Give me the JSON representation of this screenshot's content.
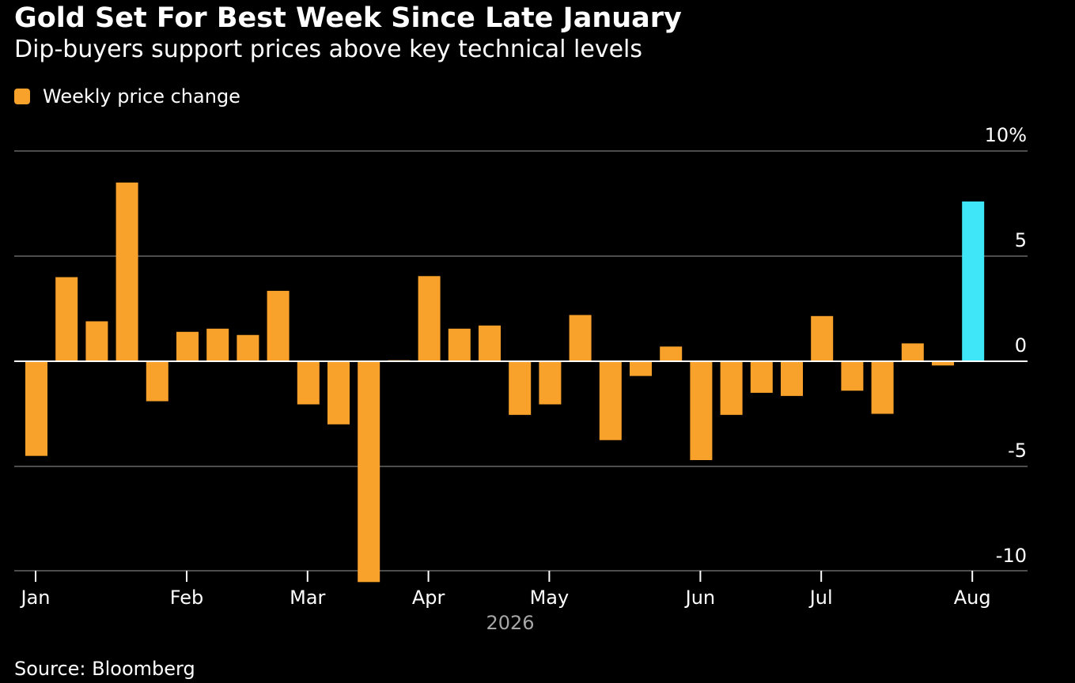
{
  "header": {
    "title": "Gold Set For Best Week Since Late January",
    "subtitle": "Dip-buyers support prices above key technical levels"
  },
  "legend": {
    "label": "Weekly price change"
  },
  "footer": {
    "source": "Source: Bloomberg"
  },
  "colors": {
    "background": "#000000",
    "bar": "#f9a22b",
    "highlight": "#3fe6f8",
    "gridline": "#4d4d4d",
    "text": "#ffffff",
    "year_label": "#a6a6a6"
  },
  "chart_data": {
    "type": "bar",
    "title": "Gold Set For Best Week Since Late January",
    "subtitle": "Dip-buyers support prices above key technical levels",
    "ylim": [
      -10.5,
      10
    ],
    "ytick_labels": [
      "10%",
      "5",
      "0",
      "-5",
      "-10"
    ],
    "ytick_values": [
      10,
      5,
      0,
      -5,
      -10
    ],
    "y_axis_position": "right",
    "grid": true,
    "legend_position": "top-left",
    "year_label": "2026",
    "month_labels": [
      "Jan",
      "Feb",
      "Mar",
      "Apr",
      "May",
      "Jun",
      "Jul",
      "Aug"
    ],
    "month_positions": [
      0.34,
      5.34,
      9.34,
      13.34,
      17.34,
      22.34,
      26.34,
      31.34
    ],
    "series": [
      {
        "name": "Weekly price change",
        "values": [
          -4.5,
          4.0,
          1.9,
          8.5,
          -1.9,
          1.4,
          1.55,
          1.25,
          3.35,
          -2.05,
          -3.0,
          -10.5,
          0.05,
          4.05,
          1.55,
          1.7,
          -2.55,
          -2.05,
          2.2,
          -3.75,
          -0.7,
          0.7,
          -4.7,
          -2.55,
          -1.5,
          -1.65,
          2.15,
          -1.4,
          -2.5,
          0.85,
          -0.2,
          7.6
        ],
        "highlight_index": 31
      }
    ]
  }
}
